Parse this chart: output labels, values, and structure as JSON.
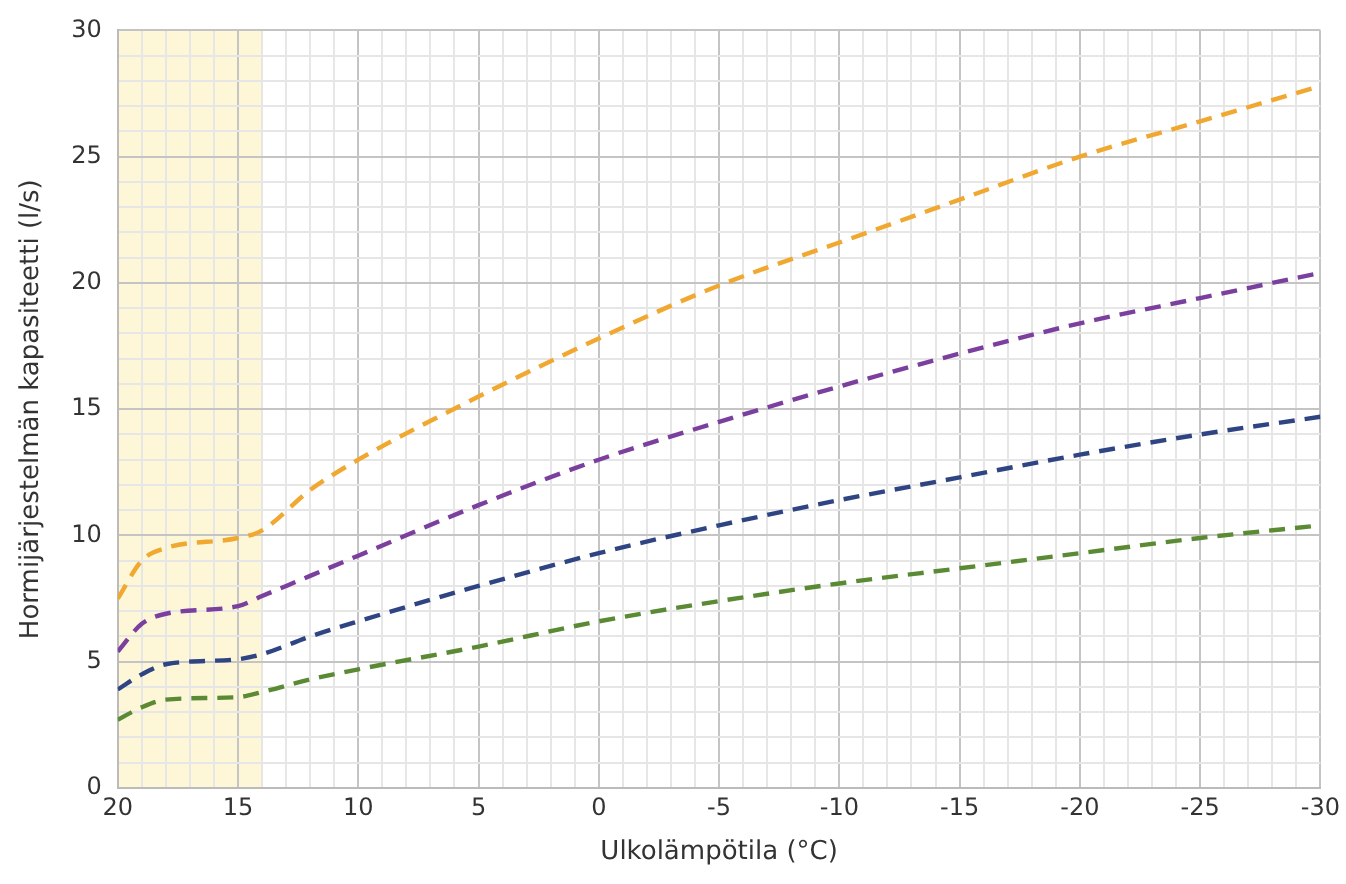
{
  "chart_data": {
    "type": "line",
    "xlabel": "Ulkolämpötila (°C)",
    "ylabel": "Hormijärjestelmän kapasiteetti (l/s)",
    "x": [
      20,
      19,
      18,
      15,
      14,
      12,
      10,
      5,
      0,
      -5,
      -10,
      -15,
      -20,
      -25,
      -30
    ],
    "series": [
      {
        "color": "#f0a830",
        "values": [
          7.5,
          9,
          9.5,
          9.9,
          10.2,
          11.8,
          13,
          15.5,
          17.8,
          19.9,
          21.6,
          23.3,
          25,
          26.4,
          27.8
        ]
      },
      {
        "color": "#7b3f9e",
        "values": [
          5.4,
          6.5,
          6.9,
          7.2,
          7.6,
          8.4,
          9.2,
          11.2,
          13,
          14.5,
          15.9,
          17.2,
          18.4,
          19.4,
          20.4
        ]
      },
      {
        "color": "#2f4483",
        "values": [
          3.9,
          4.5,
          4.9,
          5.1,
          5.3,
          6,
          6.6,
          8,
          9.3,
          10.4,
          11.4,
          12.3,
          13.2,
          14,
          14.7
        ]
      },
      {
        "color": "#5b8a35",
        "values": [
          2.7,
          3.2,
          3.5,
          3.6,
          3.8,
          4.3,
          4.7,
          5.6,
          6.6,
          7.4,
          8.1,
          8.7,
          9.3,
          9.9,
          10.4
        ]
      }
    ],
    "xlim": [
      20,
      -30
    ],
    "xticks": [
      20,
      {
        "value": 19,
        "label": null
      },
      {
        "value": 18,
        "label": null
      },
      {
        "value": 17,
        "label": null
      },
      {
        "value": 16,
        "label": null
      },
      15,
      {
        "value": 14,
        "label": null
      },
      {
        "value": 13,
        "label": null
      },
      {
        "value": 12,
        "label": null
      },
      {
        "value": 11,
        "label": null
      },
      10,
      {
        "value": 9,
        "label": null
      },
      {
        "value": 8,
        "label": null
      },
      {
        "value": 7,
        "label": null
      },
      {
        "value": 6,
        "label": null
      },
      5,
      {
        "value": 4,
        "label": null
      },
      {
        "value": 3,
        "label": null
      },
      {
        "value": 2,
        "label": null
      },
      {
        "value": 1,
        "label": null
      },
      0,
      {
        "value": -1,
        "label": null
      },
      {
        "value": -2,
        "label": null
      },
      {
        "value": -3,
        "label": null
      },
      {
        "value": -4,
        "label": null
      },
      -5,
      {
        "value": -6,
        "label": null
      },
      {
        "value": -7,
        "label": null
      },
      {
        "value": -8,
        "label": null
      },
      {
        "value": -9,
        "label": null
      },
      -10,
      {
        "value": -11,
        "label": null
      },
      {
        "value": -12,
        "label": null
      },
      {
        "value": -13,
        "label": null
      },
      {
        "value": -14,
        "label": null
      },
      -15,
      {
        "value": -16,
        "label": null
      },
      {
        "value": -17,
        "label": null
      },
      {
        "value": -18,
        "label": null
      },
      {
        "value": -19,
        "label": null
      },
      -20,
      {
        "value": -21,
        "label": null
      },
      {
        "value": -22,
        "label": null
      },
      {
        "value": -23,
        "label": null
      },
      {
        "value": -24,
        "label": null
      },
      -25,
      {
        "value": -26,
        "label": null
      },
      {
        "value": -27,
        "label": null
      },
      {
        "value": -28,
        "label": null
      },
      {
        "value": -29,
        "label": null
      },
      -30
    ],
    "ylim": [
      0,
      30
    ],
    "yticks": [
      0,
      {
        "value": 1,
        "label": null
      },
      {
        "value": 2,
        "label": null
      },
      {
        "value": 3,
        "label": null
      },
      {
        "value": 4,
        "label": null
      },
      5,
      {
        "value": 6,
        "label": null
      },
      {
        "value": 7,
        "label": null
      },
      {
        "value": 8,
        "label": null
      },
      {
        "value": 9,
        "label": null
      },
      10,
      {
        "value": 11,
        "label": null
      },
      {
        "value": 12,
        "label": null
      },
      {
        "value": 13,
        "label": null
      },
      {
        "value": 14,
        "label": null
      },
      15,
      {
        "value": 16,
        "label": null
      },
      {
        "value": 17,
        "label": null
      },
      {
        "value": 18,
        "label": null
      },
      {
        "value": 19,
        "label": null
      },
      20,
      {
        "value": 21,
        "label": null
      },
      {
        "value": 22,
        "label": null
      },
      {
        "value": 23,
        "label": null
      },
      {
        "value": 24,
        "label": null
      },
      25,
      {
        "value": 26,
        "label": null
      },
      {
        "value": 27,
        "label": null
      },
      {
        "value": 28,
        "label": null
      },
      {
        "value": 29,
        "label": null
      },
      30
    ],
    "bands": [
      {
        "axis": "x",
        "from": 20,
        "to": 14,
        "color": "#fdf7d8"
      }
    ],
    "grid": true,
    "legend": false,
    "marker": "none",
    "line_style": "dashed"
  }
}
